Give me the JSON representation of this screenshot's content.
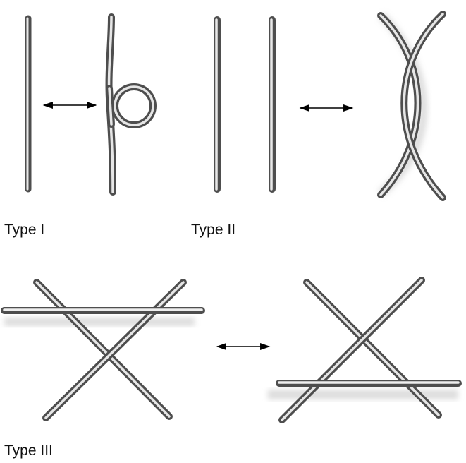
{
  "labels": {
    "type_1": "Type I",
    "type_2": "Type II",
    "type_3": "Type III"
  },
  "colors": {
    "strand_dark": "#4e4e4e",
    "strand_mid": "#8a8a8a",
    "strand_light": "#f2f2f2",
    "arrow": "#000000",
    "shadow": "#c9c9c9",
    "text": "#111111"
  }
}
